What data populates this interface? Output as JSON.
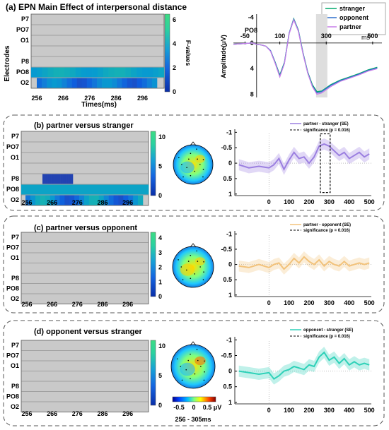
{
  "panel_a": {
    "title": "(a) EPN Main Effect of interpersonal distance",
    "heatmap_ylabel": "Electrodes",
    "heatmap_xlabel": "Times(ms)",
    "colorbar_label": "F-values",
    "colorbar_ticks": [
      "6",
      "4",
      "2",
      "0"
    ],
    "erp_channel": "PO8",
    "erp_ylabel": "Amplitude(μV)",
    "legend": [
      "stranger",
      "opponent",
      "partner"
    ]
  },
  "panel_b": {
    "title": "(b) partner versus stranger",
    "colorbar_ticks": [
      "10",
      "5",
      "0"
    ],
    "legend": [
      "partner - stranger (SE)",
      "significance (p = 0.016)"
    ]
  },
  "panel_c": {
    "title": "(c) partner versus opponent",
    "colorbar_ticks": [
      "4",
      "3",
      "2",
      "1",
      "0"
    ],
    "legend": [
      "partner - opponent (SE)",
      "significance (p = 0.016)"
    ]
  },
  "panel_d": {
    "title": "(d) opponent versus stranger",
    "colorbar_ticks": [
      "10",
      "5",
      "0"
    ],
    "legend": [
      "opponent - stranger (SE)",
      "significance (p = 0.016)"
    ]
  },
  "topo_colorbar_ticks": [
    "-0.5",
    "0",
    "0.5 μV"
  ],
  "topo_window": "256 - 305ms",
  "colors": {
    "stranger": "#00a86b",
    "opponent": "#2e6fcc",
    "partner": "#c77ee8",
    "b_diff": "#9b7fe0",
    "c_diff": "#f2c27a",
    "d_diff": "#2ed1b8"
  },
  "chart_data": [
    {
      "type": "heatmap",
      "title": "(a) EPN Main Effect of interpersonal distance",
      "rows": [
        "P7",
        "PO7",
        "O1",
        "",
        "P8",
        "PO8",
        "O2"
      ],
      "xticks": [
        256,
        266,
        276,
        286,
        296
      ],
      "xlabel": "Times(ms)",
      "ylabel": "Electrodes",
      "colorbar_range": [
        0,
        6.5
      ],
      "colorbar_label": "F-values",
      "significant_rows": {
        "PO8": [
          3.5,
          4.5
        ],
        "O2": [
          1.0,
          3.5
        ]
      }
    },
    {
      "type": "line",
      "title": "PO8",
      "xticks": [
        -50,
        100,
        300,
        500
      ],
      "xunit": "ms",
      "yticks": [
        -4,
        0,
        4,
        8
      ],
      "y_reversed": true,
      "ylabel": "Amplitude(μV)",
      "shaded_window": [
        256,
        305
      ],
      "x": [
        -100,
        -60,
        -20,
        0,
        20,
        40,
        60,
        80,
        100,
        120,
        140,
        160,
        180,
        200,
        220,
        240,
        260,
        280,
        300,
        320,
        360,
        400,
        440,
        480,
        520
      ],
      "series": [
        {
          "name": "stranger",
          "values": [
            0.2,
            0.1,
            0,
            0.2,
            0.3,
            0.5,
            1.2,
            3,
            5,
            3,
            -1.5,
            -3.8,
            -2,
            1.5,
            4.5,
            6.5,
            7.6,
            7.5,
            7,
            6.5,
            5.8,
            5.3,
            4.8,
            4.2,
            3.8
          ]
        },
        {
          "name": "opponent",
          "values": [
            0.2,
            0.1,
            0,
            0.2,
            0.3,
            0.5,
            1.2,
            3.1,
            5.2,
            3.1,
            -1.5,
            -3.7,
            -1.9,
            1.6,
            4.6,
            6.7,
            7.8,
            7.6,
            7.1,
            6.6,
            5.9,
            5.4,
            4.9,
            4.3,
            3.9
          ]
        },
        {
          "name": "partner",
          "values": [
            0.2,
            0.1,
            0,
            0.2,
            0.3,
            0.5,
            1.3,
            3.2,
            5.3,
            3.2,
            -1.4,
            -3.6,
            -1.8,
            1.7,
            4.7,
            6.8,
            8,
            7.8,
            7.3,
            6.8,
            6,
            5.5,
            5,
            4.4,
            4
          ]
        }
      ]
    },
    {
      "type": "heatmap",
      "title": "(b) partner versus stranger",
      "rows": [
        "P7",
        "PO7",
        "O1",
        "",
        "P8",
        "PO8",
        "O2"
      ],
      "xticks": [
        256,
        266,
        276,
        286,
        296
      ],
      "colorbar_range": [
        0,
        10
      ],
      "significant_rows": {
        "P8": [
          1,
          1
        ],
        "PO8": [
          6,
          6
        ],
        "O2": [
          1.5,
          7
        ]
      }
    },
    {
      "type": "line",
      "title": "(b) partner versus stranger",
      "xticks": [
        0,
        100,
        200,
        300,
        400,
        500
      ],
      "yticks": [
        -1,
        -0.5,
        0,
        0.5,
        1
      ],
      "y_reversed": true,
      "significance_window": [
        256,
        305
      ],
      "x": [
        -150,
        -100,
        -50,
        0,
        25,
        50,
        75,
        100,
        125,
        150,
        175,
        200,
        225,
        250,
        275,
        300,
        325,
        350,
        375,
        400,
        425,
        450,
        475,
        500
      ],
      "series": [
        {
          "name": "partner - stranger (SE)",
          "values": [
            0.05,
            0.15,
            0.1,
            0.15,
            0.05,
            -0.15,
            0.2,
            -0.1,
            -0.35,
            -0.15,
            -0.2,
            0,
            -0.2,
            -0.55,
            -0.62,
            -0.55,
            -0.4,
            -0.25,
            -0.35,
            -0.15,
            -0.25,
            -0.35,
            -0.2,
            -0.3
          ]
        }
      ]
    },
    {
      "type": "heatmap",
      "title": "(c) partner versus opponent",
      "rows": [
        "P7",
        "PO7",
        "O1",
        "",
        "P8",
        "PO8",
        "O2"
      ],
      "xticks": [
        256,
        266,
        276,
        286,
        296
      ],
      "colorbar_range": [
        0,
        4.3
      ],
      "significant_rows": {}
    },
    {
      "type": "line",
      "title": "(c) partner versus opponent",
      "xticks": [
        0,
        100,
        200,
        300,
        400,
        500
      ],
      "yticks": [
        -1,
        -0.5,
        0,
        0.5,
        1
      ],
      "y_reversed": true,
      "x": [
        -150,
        -100,
        -50,
        0,
        25,
        50,
        75,
        100,
        125,
        150,
        175,
        200,
        225,
        250,
        275,
        300,
        325,
        350,
        375,
        400,
        425,
        450,
        475,
        500
      ],
      "series": [
        {
          "name": "partner - opponent (SE)",
          "values": [
            0.05,
            0.1,
            0,
            0.1,
            0,
            -0.05,
            0.15,
            0,
            -0.2,
            -0.05,
            -0.25,
            -0.1,
            0,
            -0.15,
            0.05,
            -0.1,
            0,
            0.05,
            -0.1,
            0.05,
            0,
            -0.05,
            0,
            -0.05
          ]
        }
      ]
    },
    {
      "type": "heatmap",
      "title": "(d) opponent versus stranger",
      "rows": [
        "P7",
        "PO7",
        "O1",
        "",
        "P8",
        "PO8",
        "O2"
      ],
      "xticks": [
        256,
        266,
        276,
        286,
        296
      ],
      "colorbar_range": [
        0,
        12
      ],
      "significant_rows": {}
    },
    {
      "type": "line",
      "title": "(d) opponent versus stranger",
      "xticks": [
        0,
        100,
        200,
        300,
        400,
        500
      ],
      "yticks": [
        -1,
        -0.5,
        0,
        0.5,
        1
      ],
      "y_reversed": true,
      "x": [
        -150,
        -100,
        -50,
        0,
        25,
        50,
        75,
        100,
        125,
        150,
        175,
        200,
        225,
        250,
        275,
        300,
        325,
        350,
        375,
        400,
        425,
        450,
        475,
        500
      ],
      "series": [
        {
          "name": "opponent - stranger (SE)",
          "values": [
            0,
            0.05,
            0.1,
            0.05,
            0.25,
            0.15,
            0,
            -0.05,
            -0.15,
            -0.1,
            -0.05,
            -0.2,
            -0.15,
            -0.45,
            -0.6,
            -0.35,
            -0.45,
            -0.25,
            -0.4,
            -0.2,
            -0.3,
            -0.2,
            -0.25,
            -0.2
          ]
        }
      ]
    }
  ]
}
